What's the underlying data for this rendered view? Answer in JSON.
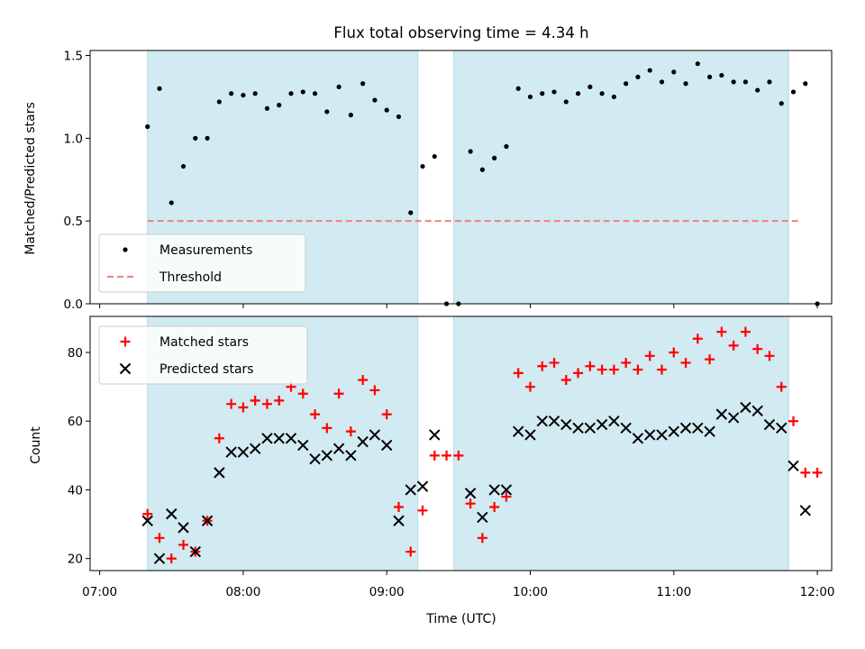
{
  "figure": {
    "title": "Flux total observing time = 4.34 h"
  },
  "colors": {
    "shade": "#add8e6",
    "measurement": "#000000",
    "threshold": "#f08080",
    "matched": "#ff0000",
    "predicted": "#000000"
  },
  "chart_data": [
    {
      "type": "scatter",
      "title": "Flux total observing time = 4.34 h",
      "ylabel": "Matched/Predicted stars",
      "xlabel": "",
      "x_axis": "time (UTC)",
      "xlim": [
        "06:56",
        "12:06"
      ],
      "ylim": [
        0,
        1.53
      ],
      "yticks": [
        0.0,
        0.5,
        1.0,
        1.5
      ],
      "ytick_labels": [
        "0.0",
        "0.5",
        "1.0",
        "1.5"
      ],
      "shaded_intervals": [
        [
          "07:20",
          "09:13"
        ],
        [
          "09:28",
          "11:48"
        ]
      ],
      "legend": {
        "position": "lower-left",
        "entries": [
          "Measurements",
          "Threshold"
        ]
      },
      "threshold": {
        "name": "Threshold",
        "y": 0.5,
        "x_range": [
          "07:20",
          "11:53"
        ],
        "style": "dashed"
      },
      "series": [
        {
          "name": "Measurements",
          "marker": "dot",
          "points": [
            [
              "07:20",
              1.07
            ],
            [
              "07:25",
              1.3
            ],
            [
              "07:30",
              0.61
            ],
            [
              "07:35",
              0.83
            ],
            [
              "07:40",
              1.0
            ],
            [
              "07:45",
              1.0
            ],
            [
              "07:50",
              1.22
            ],
            [
              "07:55",
              1.27
            ],
            [
              "08:00",
              1.26
            ],
            [
              "08:05",
              1.27
            ],
            [
              "08:10",
              1.18
            ],
            [
              "08:15",
              1.2
            ],
            [
              "08:20",
              1.27
            ],
            [
              "08:25",
              1.28
            ],
            [
              "08:30",
              1.27
            ],
            [
              "08:35",
              1.16
            ],
            [
              "08:40",
              1.31
            ],
            [
              "08:45",
              1.14
            ],
            [
              "08:50",
              1.33
            ],
            [
              "08:55",
              1.23
            ],
            [
              "09:00",
              1.17
            ],
            [
              "09:05",
              1.13
            ],
            [
              "09:10",
              0.55
            ],
            [
              "09:15",
              0.83
            ],
            [
              "09:20",
              0.89
            ],
            [
              "09:25",
              0.0
            ],
            [
              "09:30",
              0.0
            ],
            [
              "09:35",
              0.92
            ],
            [
              "09:40",
              0.81
            ],
            [
              "09:45",
              0.88
            ],
            [
              "09:50",
              0.95
            ],
            [
              "09:55",
              1.3
            ],
            [
              "10:00",
              1.25
            ],
            [
              "10:05",
              1.27
            ],
            [
              "10:10",
              1.28
            ],
            [
              "10:15",
              1.22
            ],
            [
              "10:20",
              1.27
            ],
            [
              "10:25",
              1.31
            ],
            [
              "10:30",
              1.27
            ],
            [
              "10:35",
              1.25
            ],
            [
              "10:40",
              1.33
            ],
            [
              "10:45",
              1.37
            ],
            [
              "10:50",
              1.41
            ],
            [
              "10:55",
              1.34
            ],
            [
              "11:00",
              1.4
            ],
            [
              "11:05",
              1.33
            ],
            [
              "11:10",
              1.45
            ],
            [
              "11:15",
              1.37
            ],
            [
              "11:20",
              1.38
            ],
            [
              "11:25",
              1.34
            ],
            [
              "11:30",
              1.34
            ],
            [
              "11:35",
              1.29
            ],
            [
              "11:40",
              1.34
            ],
            [
              "11:45",
              1.21
            ],
            [
              "11:50",
              1.28
            ],
            [
              "11:55",
              1.33
            ],
            [
              "12:00",
              0.0
            ]
          ]
        }
      ]
    },
    {
      "type": "scatter",
      "ylabel": "Count",
      "xlabel": "Time (UTC)",
      "xlim": [
        "06:56",
        "12:06"
      ],
      "ylim": [
        16.5,
        90.5
      ],
      "yticks": [
        20,
        40,
        60,
        80
      ],
      "xticks": [
        "07:00",
        "08:00",
        "09:00",
        "10:00",
        "11:00",
        "12:00"
      ],
      "shaded_intervals": [
        [
          "07:20",
          "09:13"
        ],
        [
          "09:28",
          "11:48"
        ]
      ],
      "legend": {
        "position": "upper-left",
        "entries": [
          "Matched stars",
          "Predicted stars"
        ]
      },
      "series": [
        {
          "name": "Matched stars",
          "marker": "plus",
          "points": [
            [
              "07:20",
              33
            ],
            [
              "07:25",
              26
            ],
            [
              "07:30",
              20
            ],
            [
              "07:35",
              24
            ],
            [
              "07:40",
              22
            ],
            [
              "07:45",
              31
            ],
            [
              "07:50",
              55
            ],
            [
              "07:55",
              65
            ],
            [
              "08:00",
              64
            ],
            [
              "08:05",
              66
            ],
            [
              "08:10",
              65
            ],
            [
              "08:15",
              66
            ],
            [
              "08:20",
              70
            ],
            [
              "08:25",
              68
            ],
            [
              "08:30",
              62
            ],
            [
              "08:35",
              58
            ],
            [
              "08:40",
              68
            ],
            [
              "08:45",
              57
            ],
            [
              "08:50",
              72
            ],
            [
              "08:55",
              69
            ],
            [
              "09:00",
              62
            ],
            [
              "09:05",
              35
            ],
            [
              "09:10",
              22
            ],
            [
              "09:15",
              34
            ],
            [
              "09:20",
              50
            ],
            [
              "09:25",
              50
            ],
            [
              "09:30",
              50
            ],
            [
              "09:35",
              36
            ],
            [
              "09:40",
              26
            ],
            [
              "09:45",
              35
            ],
            [
              "09:50",
              38
            ],
            [
              "09:55",
              74
            ],
            [
              "10:00",
              70
            ],
            [
              "10:05",
              76
            ],
            [
              "10:10",
              77
            ],
            [
              "10:15",
              72
            ],
            [
              "10:20",
              74
            ],
            [
              "10:25",
              76
            ],
            [
              "10:30",
              75
            ],
            [
              "10:35",
              75
            ],
            [
              "10:40",
              77
            ],
            [
              "10:45",
              75
            ],
            [
              "10:50",
              79
            ],
            [
              "10:55",
              75
            ],
            [
              "11:00",
              80
            ],
            [
              "11:05",
              77
            ],
            [
              "11:10",
              84
            ],
            [
              "11:15",
              78
            ],
            [
              "11:20",
              86
            ],
            [
              "11:25",
              82
            ],
            [
              "11:30",
              86
            ],
            [
              "11:35",
              81
            ],
            [
              "11:40",
              79
            ],
            [
              "11:45",
              70
            ],
            [
              "11:50",
              60
            ],
            [
              "11:55",
              45
            ],
            [
              "12:00",
              45
            ]
          ]
        },
        {
          "name": "Predicted stars",
          "marker": "x",
          "points": [
            [
              "07:20",
              31
            ],
            [
              "07:25",
              20
            ],
            [
              "07:30",
              33
            ],
            [
              "07:35",
              29
            ],
            [
              "07:40",
              22
            ],
            [
              "07:45",
              31
            ],
            [
              "07:50",
              45
            ],
            [
              "07:55",
              51
            ],
            [
              "08:00",
              51
            ],
            [
              "08:05",
              52
            ],
            [
              "08:10",
              55
            ],
            [
              "08:15",
              55
            ],
            [
              "08:20",
              55
            ],
            [
              "08:25",
              53
            ],
            [
              "08:30",
              49
            ],
            [
              "08:35",
              50
            ],
            [
              "08:40",
              52
            ],
            [
              "08:45",
              50
            ],
            [
              "08:50",
              54
            ],
            [
              "08:55",
              56
            ],
            [
              "09:00",
              53
            ],
            [
              "09:05",
              31
            ],
            [
              "09:10",
              40
            ],
            [
              "09:15",
              41
            ],
            [
              "09:20",
              56
            ],
            [
              "09:35",
              39
            ],
            [
              "09:40",
              32
            ],
            [
              "09:45",
              40
            ],
            [
              "09:50",
              40
            ],
            [
              "09:55",
              57
            ],
            [
              "10:00",
              56
            ],
            [
              "10:05",
              60
            ],
            [
              "10:10",
              60
            ],
            [
              "10:15",
              59
            ],
            [
              "10:20",
              58
            ],
            [
              "10:25",
              58
            ],
            [
              "10:30",
              59
            ],
            [
              "10:35",
              60
            ],
            [
              "10:40",
              58
            ],
            [
              "10:45",
              55
            ],
            [
              "10:50",
              56
            ],
            [
              "10:55",
              56
            ],
            [
              "11:00",
              57
            ],
            [
              "11:05",
              58
            ],
            [
              "11:10",
              58
            ],
            [
              "11:15",
              57
            ],
            [
              "11:20",
              62
            ],
            [
              "11:25",
              61
            ],
            [
              "11:30",
              64
            ],
            [
              "11:35",
              63
            ],
            [
              "11:40",
              59
            ],
            [
              "11:45",
              58
            ],
            [
              "11:50",
              47
            ],
            [
              "11:55",
              34
            ]
          ]
        }
      ]
    }
  ]
}
